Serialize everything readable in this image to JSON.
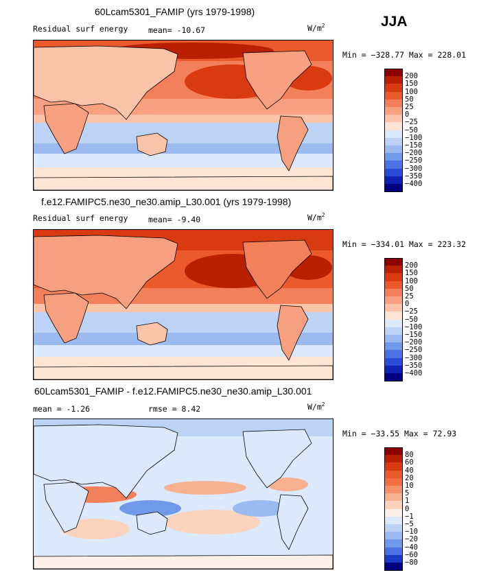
{
  "season": "JJA",
  "unit_base": "W/m",
  "unit_exp": "2",
  "panels": [
    {
      "title": "60Lcam5301_FAMIP (yrs 1979-1998)",
      "variable": "Residual surf energy",
      "stat1_label": "mean=",
      "stat1_value": "-10.67",
      "minmax": "Min = −328.77 Max = 228.01",
      "levels": [
        "200",
        "150",
        "100",
        "50",
        "25",
        "0",
        "−25",
        "−50",
        "−100",
        "−150",
        "−200",
        "−250",
        "−300",
        "−350",
        "−400"
      ],
      "colors": [
        "#8b0000",
        "#b82000",
        "#d93a0f",
        "#ea5a2a",
        "#f2805a",
        "#f7a07f",
        "#fbc4a8",
        "#fde4d4",
        "#dce9fb",
        "#bdd3f6",
        "#9bbaf0",
        "#7199ea",
        "#4a72e4",
        "#2a4ad8",
        "#1020b0",
        "#000080"
      ]
    },
    {
      "title": "f.e12.FAMIPC5.ne30_ne30.amip_L30.001 (yrs 1979-1998)",
      "variable": "Residual surf energy",
      "stat1_label": "mean=",
      "stat1_value": "-9.40",
      "minmax": "Min = −334.01 Max = 223.32",
      "levels": [
        "200",
        "150",
        "100",
        "50",
        "25",
        "0",
        "−25",
        "−50",
        "−100",
        "−150",
        "−200",
        "−250",
        "−300",
        "−350",
        "−400"
      ],
      "colors": [
        "#8b0000",
        "#b82000",
        "#d93a0f",
        "#ea5a2a",
        "#f2805a",
        "#f7a07f",
        "#fbc4a8",
        "#fde4d4",
        "#dce9fb",
        "#bdd3f6",
        "#9bbaf0",
        "#7199ea",
        "#4a72e4",
        "#2a4ad8",
        "#1020b0",
        "#000080"
      ]
    },
    {
      "title": "60Lcam5301_FAMIP - f.e12.FAMIPC5.ne30_ne30.amip_L30.001",
      "stat1_label": "mean =",
      "stat1_value": "-1.26",
      "stat2_label": "rmse =",
      "stat2_value": "8.42",
      "minmax": "Min = −33.55 Max =  72.93",
      "levels": [
        "80",
        "60",
        "40",
        "20",
        "10",
        "5",
        "1",
        "0",
        "−1",
        "−5",
        "−10",
        "−20",
        "−40",
        "−60",
        "−80"
      ],
      "colors": [
        "#8b0000",
        "#b82000",
        "#d93a0f",
        "#ea5a2a",
        "#f07040",
        "#f39068",
        "#f7b090",
        "#fbd2bc",
        "#fdf0e8",
        "#dce9fb",
        "#bdd3f6",
        "#9bbaf0",
        "#7199ea",
        "#4a72e4",
        "#1c3cc8",
        "#000080"
      ]
    }
  ],
  "chart_data": {
    "type": "heatmap",
    "season": "JJA",
    "unit": "W/m2",
    "maps": [
      {
        "title": "60Lcam5301_FAMIP (yrs 1979-1998)",
        "variable": "Residual surf energy",
        "mean": -10.67,
        "min": -328.77,
        "max": 228.01,
        "contour_levels": [
          200,
          150,
          100,
          50,
          25,
          0,
          -25,
          -50,
          -100,
          -150,
          -200,
          -250,
          -300,
          -350,
          -400
        ]
      },
      {
        "title": "f.e12.FAMIPC5.ne30_ne30.amip_L30.001 (yrs 1979-1998)",
        "variable": "Residual surf energy",
        "mean": -9.4,
        "min": -334.01,
        "max": 223.32,
        "contour_levels": [
          200,
          150,
          100,
          50,
          25,
          0,
          -25,
          -50,
          -100,
          -150,
          -200,
          -250,
          -300,
          -350,
          -400
        ]
      },
      {
        "title": "60Lcam5301_FAMIP - f.e12.FAMIPC5.ne30_ne30.amip_L30.001",
        "mean": -1.26,
        "rmse": 8.42,
        "min": -33.55,
        "max": 72.93,
        "contour_levels": [
          80,
          60,
          40,
          20,
          10,
          5,
          1,
          0,
          -1,
          -5,
          -10,
          -20,
          -40,
          -60,
          -80
        ]
      }
    ]
  }
}
